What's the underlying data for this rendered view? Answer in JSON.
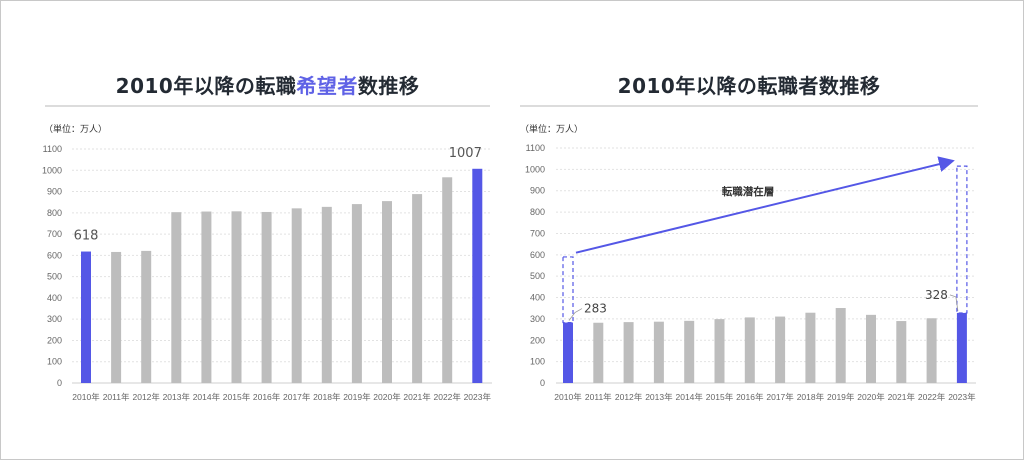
{
  "colors": {
    "highlight": "#5457e6",
    "bar": "#bdbdbd",
    "grid": "#e2e2e2",
    "title_highlight": "#5f62e6"
  },
  "left": {
    "title_pre": "2010年以降の転職",
    "title_hl": "希望者",
    "title_post": "数推移",
    "unit": "（単位：万人）"
  },
  "right": {
    "title": "2010年以降の転職者数推移",
    "unit": "（単位：万人）",
    "annotation": "転職潜在層"
  },
  "chart_data": [
    {
      "type": "bar",
      "title": "2010年以降の転職希望者数推移",
      "ylabel": "（単位：万人）",
      "ylim": [
        0,
        1100
      ],
      "yticks": [
        0,
        100,
        200,
        300,
        400,
        500,
        600,
        700,
        800,
        900,
        1000,
        1100
      ],
      "grid": true,
      "categories": [
        "2010年",
        "2011年",
        "2012年",
        "2013年",
        "2014年",
        "2015年",
        "2016年",
        "2017年",
        "2018年",
        "2019年",
        "2020年",
        "2021年",
        "2022年",
        "2023年"
      ],
      "values": [
        618,
        616,
        621,
        803,
        806,
        807,
        804,
        821,
        828,
        841,
        855,
        888,
        967,
        1007
      ],
      "highlight_indices": [
        0,
        13
      ],
      "data_labels": {
        "0": "618",
        "13": "1007"
      }
    },
    {
      "type": "bar",
      "title": "2010年以降の転職者数推移",
      "ylabel": "（単位：万人）",
      "ylim": [
        0,
        1100
      ],
      "yticks": [
        0,
        100,
        200,
        300,
        400,
        500,
        600,
        700,
        800,
        900,
        1000,
        1100
      ],
      "grid": true,
      "categories": [
        "2010年",
        "2011年",
        "2012年",
        "2013年",
        "2014年",
        "2015年",
        "2016年",
        "2017年",
        "2018年",
        "2019年",
        "2020年",
        "2021年",
        "2022年",
        "2023年"
      ],
      "values": [
        283,
        282,
        285,
        287,
        291,
        299,
        307,
        311,
        329,
        351,
        319,
        290,
        303,
        328
      ],
      "highlight_indices": [
        0,
        13
      ],
      "data_labels": {
        "0": "283",
        "13": "328"
      },
      "latent_boxes": [
        {
          "index": 0,
          "from": 283,
          "to": 590
        },
        {
          "index": 13,
          "from": 328,
          "to": 1015
        }
      ],
      "arrow": {
        "from": {
          "index": 0,
          "value": 610
        },
        "to": {
          "index": 13,
          "value": 1040
        },
        "label": "転職潜在層"
      }
    }
  ]
}
